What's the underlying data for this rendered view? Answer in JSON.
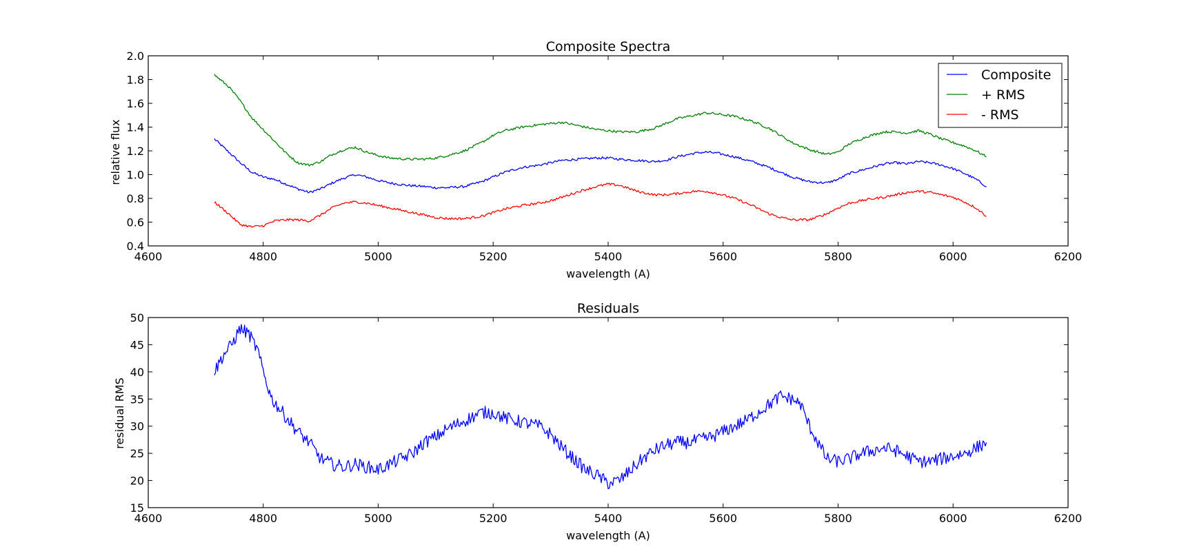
{
  "chart_data": [
    {
      "type": "line",
      "title": "Composite Spectra",
      "xlabel": "wavelength (A)",
      "ylabel": "relative flux",
      "xlim": [
        4600,
        6200
      ],
      "ylim": [
        0.4,
        2.0
      ],
      "xticks": [
        4600,
        4800,
        5000,
        5200,
        5400,
        5600,
        5800,
        6000,
        6200
      ],
      "yticks": [
        0.4,
        0.6,
        0.8,
        1.0,
        1.2,
        1.4,
        1.6,
        1.8,
        2.0
      ],
      "ytick_labels": [
        "0.4",
        "0.6",
        "0.8",
        "1.0",
        "1.2",
        "1.4",
        "1.6",
        "1.8",
        "2.0"
      ],
      "grid": false,
      "legend": {
        "placement": "top-right"
      },
      "noise": 0.01,
      "x": [
        4715,
        4740,
        4760,
        4780,
        4800,
        4820,
        4840,
        4860,
        4880,
        4900,
        4920,
        4940,
        4960,
        4980,
        5000,
        5020,
        5050,
        5080,
        5100,
        5120,
        5150,
        5180,
        5200,
        5220,
        5250,
        5280,
        5300,
        5320,
        5350,
        5380,
        5400,
        5420,
        5450,
        5480,
        5500,
        5520,
        5550,
        5570,
        5590,
        5620,
        5650,
        5680,
        5700,
        5720,
        5750,
        5780,
        5800,
        5820,
        5850,
        5880,
        5900,
        5920,
        5940,
        5960,
        5980,
        6000,
        6020,
        6040,
        6058
      ],
      "series": [
        {
          "name": "Composite",
          "color": "#0000ff",
          "values": [
            1.3,
            1.19,
            1.1,
            1.02,
            0.98,
            0.96,
            0.92,
            0.88,
            0.85,
            0.88,
            0.93,
            0.97,
            1.0,
            0.98,
            0.95,
            0.93,
            0.91,
            0.9,
            0.89,
            0.89,
            0.9,
            0.94,
            0.98,
            1.02,
            1.06,
            1.08,
            1.1,
            1.12,
            1.13,
            1.14,
            1.14,
            1.13,
            1.12,
            1.11,
            1.12,
            1.15,
            1.18,
            1.19,
            1.18,
            1.15,
            1.11,
            1.06,
            1.02,
            0.98,
            0.94,
            0.93,
            0.96,
            1.01,
            1.05,
            1.09,
            1.1,
            1.09,
            1.11,
            1.1,
            1.08,
            1.05,
            1.01,
            0.96,
            0.9
          ]
        },
        {
          "name": "+ RMS",
          "color": "#008000",
          "values": [
            1.84,
            1.74,
            1.62,
            1.48,
            1.38,
            1.28,
            1.18,
            1.1,
            1.08,
            1.11,
            1.17,
            1.21,
            1.23,
            1.19,
            1.16,
            1.14,
            1.13,
            1.13,
            1.14,
            1.16,
            1.2,
            1.27,
            1.33,
            1.37,
            1.4,
            1.42,
            1.43,
            1.44,
            1.41,
            1.38,
            1.37,
            1.36,
            1.36,
            1.39,
            1.43,
            1.47,
            1.5,
            1.52,
            1.51,
            1.49,
            1.45,
            1.39,
            1.33,
            1.27,
            1.21,
            1.17,
            1.19,
            1.26,
            1.32,
            1.36,
            1.36,
            1.35,
            1.37,
            1.34,
            1.3,
            1.27,
            1.24,
            1.2,
            1.15
          ]
        },
        {
          "name": "- RMS",
          "color": "#ff0000",
          "values": [
            0.77,
            0.67,
            0.58,
            0.56,
            0.57,
            0.61,
            0.62,
            0.62,
            0.61,
            0.66,
            0.72,
            0.76,
            0.77,
            0.76,
            0.74,
            0.72,
            0.69,
            0.66,
            0.64,
            0.63,
            0.63,
            0.65,
            0.68,
            0.71,
            0.74,
            0.76,
            0.78,
            0.81,
            0.86,
            0.9,
            0.92,
            0.91,
            0.86,
            0.83,
            0.83,
            0.84,
            0.86,
            0.86,
            0.84,
            0.8,
            0.74,
            0.67,
            0.64,
            0.62,
            0.62,
            0.67,
            0.72,
            0.76,
            0.79,
            0.81,
            0.83,
            0.85,
            0.86,
            0.85,
            0.83,
            0.81,
            0.77,
            0.72,
            0.65
          ]
        }
      ]
    },
    {
      "type": "line",
      "title": "Residuals",
      "xlabel": "wavelength (A)",
      "ylabel": "residual RMS",
      "xlim": [
        4600,
        6200
      ],
      "ylim": [
        15,
        50
      ],
      "xticks": [
        4600,
        4800,
        5000,
        5200,
        5400,
        5600,
        5800,
        6000,
        6200
      ],
      "yticks": [
        15,
        20,
        25,
        30,
        35,
        40,
        45,
        50
      ],
      "ytick_labels": [
        "15",
        "20",
        "25",
        "30",
        "35",
        "40",
        "45",
        "50"
      ],
      "grid": false,
      "noise": 1.2,
      "x": [
        4715,
        4730,
        4745,
        4760,
        4775,
        4790,
        4800,
        4815,
        4830,
        4845,
        4860,
        4880,
        4900,
        4920,
        4940,
        4960,
        4980,
        5000,
        5020,
        5040,
        5060,
        5080,
        5100,
        5120,
        5140,
        5160,
        5180,
        5200,
        5220,
        5240,
        5260,
        5280,
        5300,
        5320,
        5340,
        5360,
        5380,
        5400,
        5420,
        5440,
        5460,
        5480,
        5500,
        5520,
        5540,
        5560,
        5580,
        5600,
        5620,
        5640,
        5660,
        5680,
        5700,
        5720,
        5735,
        5750,
        5765,
        5780,
        5800,
        5820,
        5840,
        5860,
        5880,
        5900,
        5920,
        5940,
        5960,
        5980,
        6000,
        6020,
        6040,
        6058
      ],
      "series": [
        {
          "color": "#0000ff",
          "values": [
            40,
            43,
            45,
            48,
            47,
            44,
            40,
            35,
            33,
            31,
            29,
            27,
            24,
            23,
            22.5,
            23,
            22.5,
            22,
            23,
            24,
            25,
            27,
            28,
            29.5,
            30.5,
            31.5,
            32.5,
            32.5,
            31.5,
            31,
            30.5,
            30,
            28.5,
            26,
            24,
            22,
            21,
            19.5,
            20,
            22,
            24,
            25.5,
            26.5,
            27,
            27,
            27.5,
            28,
            29,
            30,
            31,
            32.5,
            34,
            35.5,
            35,
            34,
            30,
            27,
            24,
            23.5,
            24,
            25,
            25.5,
            26,
            25.5,
            24.5,
            23.5,
            23.5,
            24,
            24.5,
            25,
            26,
            27
          ]
        }
      ]
    }
  ]
}
